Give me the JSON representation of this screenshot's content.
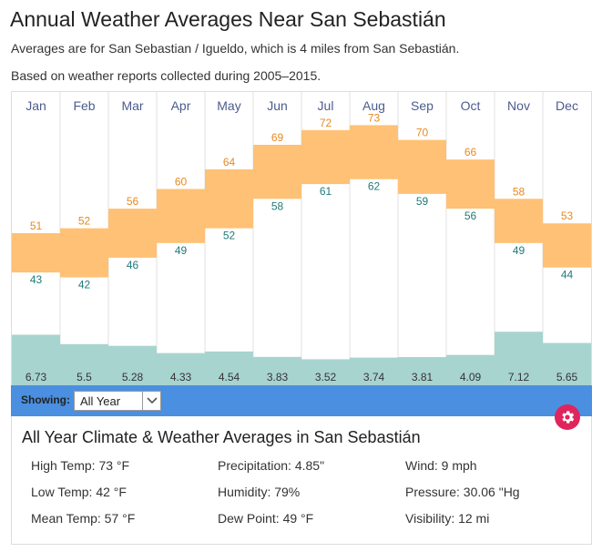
{
  "page": {
    "title": "Annual Weather Averages Near San Sebastián",
    "subtitle_1": "Averages are for San Sebastian / Igueldo, which is 4 miles from San Sebastián.",
    "subtitle_2": "Based on weather reports collected during 2005–2015."
  },
  "colors": {
    "high_low_band": "#ffc175",
    "precip_bar": "#a8d4d0",
    "high_label": "#e68a1f",
    "low_label": "#227a7a",
    "month_label": "#4d5b8f",
    "showing_bar": "#4a8fe0",
    "gear_button": "#e0245e"
  },
  "chart_data": {
    "type": "bar",
    "categories": [
      "Jan",
      "Feb",
      "Mar",
      "Apr",
      "May",
      "Jun",
      "Jul",
      "Aug",
      "Sep",
      "Oct",
      "Nov",
      "Dec"
    ],
    "high_temp": [
      51,
      52,
      56,
      60,
      64,
      69,
      72,
      73,
      70,
      66,
      58,
      53
    ],
    "low_temp": [
      43,
      42,
      46,
      49,
      52,
      58,
      61,
      62,
      59,
      56,
      49,
      44
    ],
    "precipitation": [
      6.73,
      5.5,
      5.28,
      4.33,
      4.54,
      3.83,
      3.52,
      3.74,
      3.81,
      4.09,
      7.12,
      5.65
    ],
    "title": "",
    "xlabel": "",
    "ylabel": "",
    "grid": false
  },
  "controls": {
    "showing_label": "Showing:",
    "selected_period": "All Year",
    "gear_icon": "gear-icon",
    "dropdown_icon": "chevron-down-icon"
  },
  "summary": {
    "title": "All Year Climate & Weather Averages in San Sebastián",
    "high_temp": "High Temp: 73 °F",
    "low_temp": "Low Temp: 42 °F",
    "mean_temp": "Mean Temp: 57 °F",
    "precipitation": "Precipitation: 4.85\"",
    "humidity": "Humidity: 79%",
    "dew_point": "Dew Point: 49 °F",
    "wind": "Wind: 9 mph",
    "pressure": "Pressure: 30.06 \"Hg",
    "visibility": "Visibility: 12 mi"
  }
}
